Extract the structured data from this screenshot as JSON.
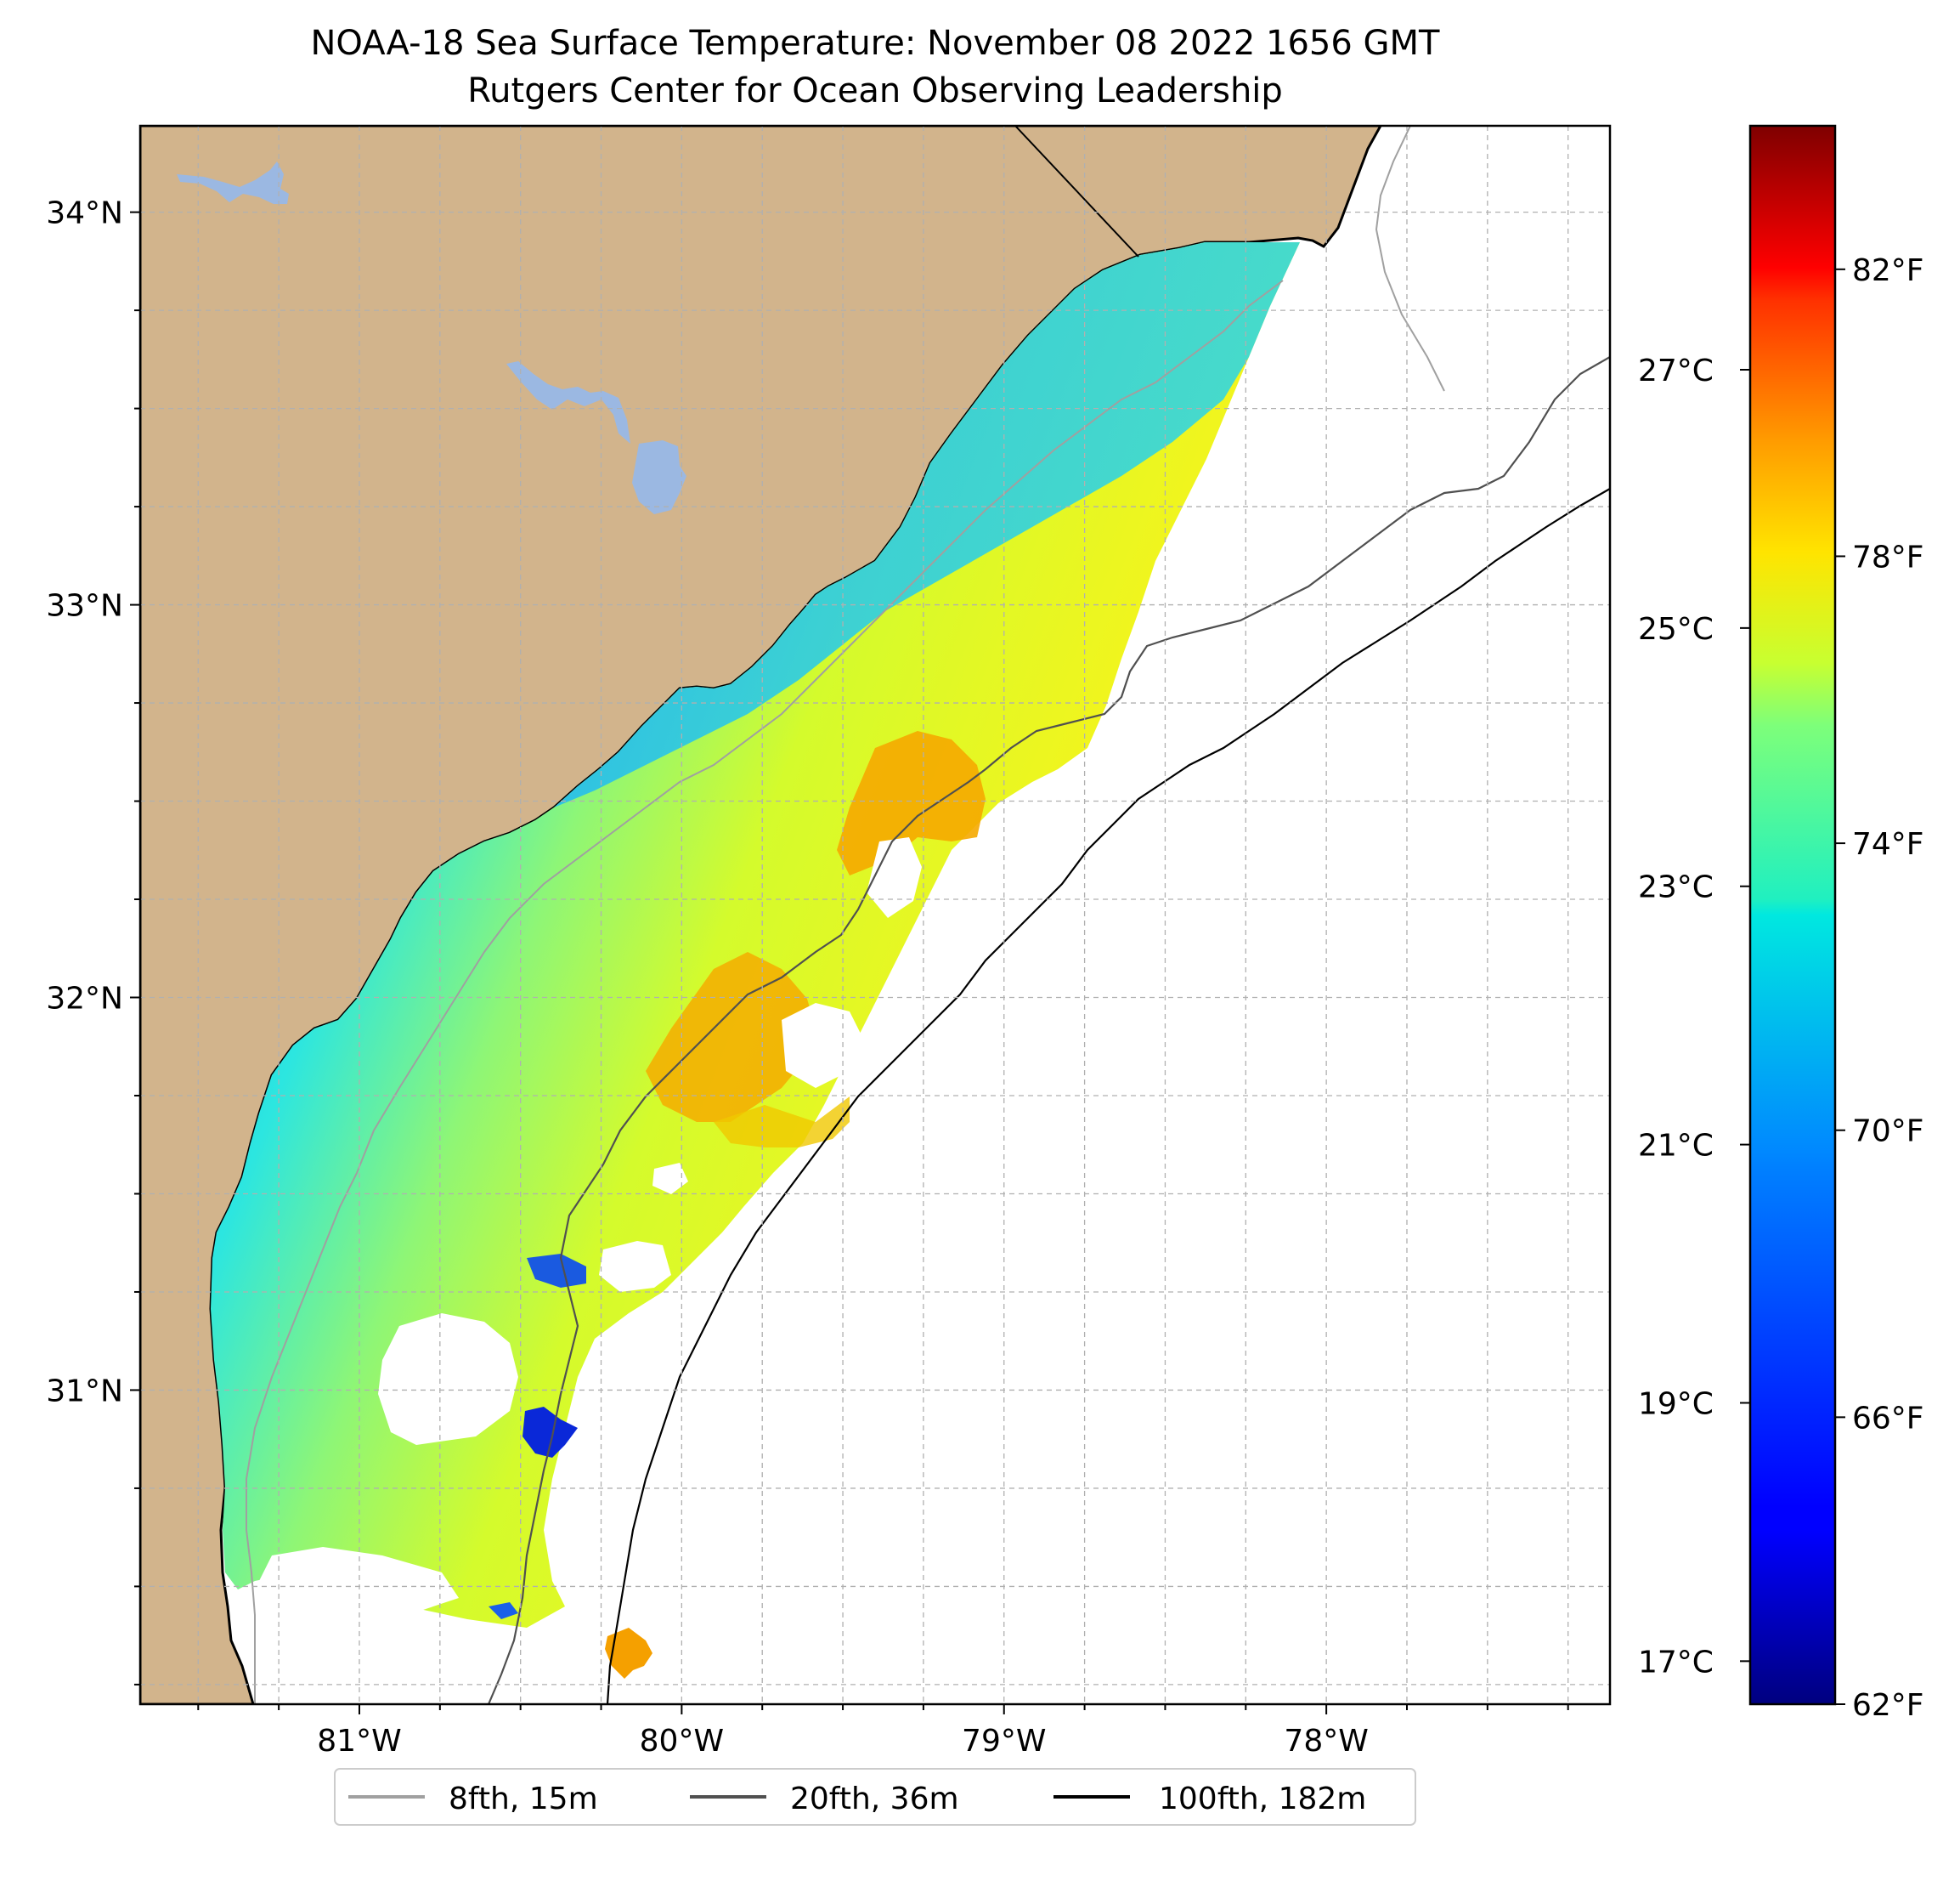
{
  "title": {
    "line1": "NOAA-18 Sea Surface Temperature: November 08 2022 1656 GMT",
    "line2": "Rutgers Center for Ocean Observing Leadership"
  },
  "map": {
    "lon_range": [
      -81.68,
      -77.12
    ],
    "lat_range": [
      30.2,
      34.22
    ],
    "lat_ticks": [
      {
        "value": 31,
        "label": "31°N"
      },
      {
        "value": 32,
        "label": "32°N"
      },
      {
        "value": 33,
        "label": "33°N"
      },
      {
        "value": 34,
        "label": "34°N"
      }
    ],
    "lon_ticks": [
      {
        "value": -81,
        "label": "81°W"
      },
      {
        "value": -80,
        "label": "80°W"
      },
      {
        "value": -79,
        "label": "79°W"
      },
      {
        "value": -78,
        "label": "78°W"
      }
    ],
    "colors": {
      "land": "#d2b48c",
      "lakes": "#9bb8e2",
      "grid": "#b0b0b0"
    }
  },
  "colorbar": {
    "f_range": [
      62,
      84
    ],
    "f_ticks": [
      {
        "value": 62,
        "label": "62°F"
      },
      {
        "value": 66,
        "label": "66°F"
      },
      {
        "value": 70,
        "label": "70°F"
      },
      {
        "value": 74,
        "label": "74°F"
      },
      {
        "value": 78,
        "label": "78°F"
      },
      {
        "value": 82,
        "label": "82°F"
      }
    ],
    "c_ticks": [
      {
        "value": 17,
        "label": "17°C"
      },
      {
        "value": 19,
        "label": "19°C"
      },
      {
        "value": 21,
        "label": "21°C"
      },
      {
        "value": 23,
        "label": "23°C"
      },
      {
        "value": 25,
        "label": "25°C"
      },
      {
        "value": 27,
        "label": "27°C"
      }
    ],
    "colormap": "jet"
  },
  "legend": {
    "items": [
      {
        "label": "8fth, 15m",
        "color": "#a0a0a0"
      },
      {
        "label": "20fth, 36m",
        "color": "#505050"
      },
      {
        "label": "100fth, 182m",
        "color": "#000000"
      }
    ]
  }
}
